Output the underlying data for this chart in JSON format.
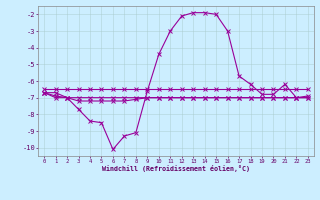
{
  "xlabel": "Windchill (Refroidissement éolien,°C)",
  "bg_color": "#cceeff",
  "line_color": "#990099",
  "grid_color": "#aacccc",
  "ylim": [
    -10.5,
    -1.5
  ],
  "xlim": [
    -0.5,
    23.5
  ],
  "yticks": [
    -10,
    -9,
    -8,
    -7,
    -6,
    -5,
    -4,
    -3,
    -2
  ],
  "xticks": [
    0,
    1,
    2,
    3,
    4,
    5,
    6,
    7,
    8,
    9,
    10,
    11,
    12,
    13,
    14,
    15,
    16,
    17,
    18,
    19,
    20,
    21,
    22,
    23
  ],
  "x": [
    0,
    1,
    2,
    3,
    4,
    5,
    6,
    7,
    8,
    9,
    10,
    11,
    12,
    13,
    14,
    15,
    16,
    17,
    18,
    19,
    20,
    21,
    22,
    23
  ],
  "y_hump": [
    -6.7,
    -6.7,
    -7.0,
    -7.7,
    -8.4,
    -8.5,
    -10.1,
    -9.3,
    -9.1,
    -6.6,
    -4.4,
    -3.0,
    -2.1,
    -1.9,
    -1.9,
    -2.0,
    -3.0,
    -5.7,
    -6.2,
    -6.8,
    -6.8,
    -6.2,
    -7.0,
    -6.9
  ],
  "y_flat1": [
    -6.5,
    -6.5,
    -6.5,
    -6.5,
    -6.5,
    -6.5,
    -6.5,
    -6.5,
    -6.5,
    -6.5,
    -6.5,
    -6.5,
    -6.5,
    -6.5,
    -6.5,
    -6.5,
    -6.5,
    -6.5,
    -6.5,
    -6.5,
    -6.5,
    -6.5,
    -6.5,
    -6.5
  ],
  "y_flat2": [
    -6.7,
    -6.9,
    -7.0,
    -7.2,
    -7.2,
    -7.2,
    -7.2,
    -7.2,
    -7.1,
    -7.0,
    -7.0,
    -7.0,
    -7.0,
    -7.0,
    -7.0,
    -7.0,
    -7.0,
    -7.0,
    -7.0,
    -7.0,
    -7.0,
    -7.0,
    -7.0,
    -7.0
  ],
  "y_flat3": [
    -6.7,
    -7.0,
    -7.0,
    -7.0,
    -7.0,
    -7.0,
    -7.0,
    -7.0,
    -7.0,
    -7.0,
    -7.0,
    -7.0,
    -7.0,
    -7.0,
    -7.0,
    -7.0,
    -7.0,
    -7.0,
    -7.0,
    -7.0,
    -7.0,
    -7.0,
    -7.0,
    -7.0
  ]
}
